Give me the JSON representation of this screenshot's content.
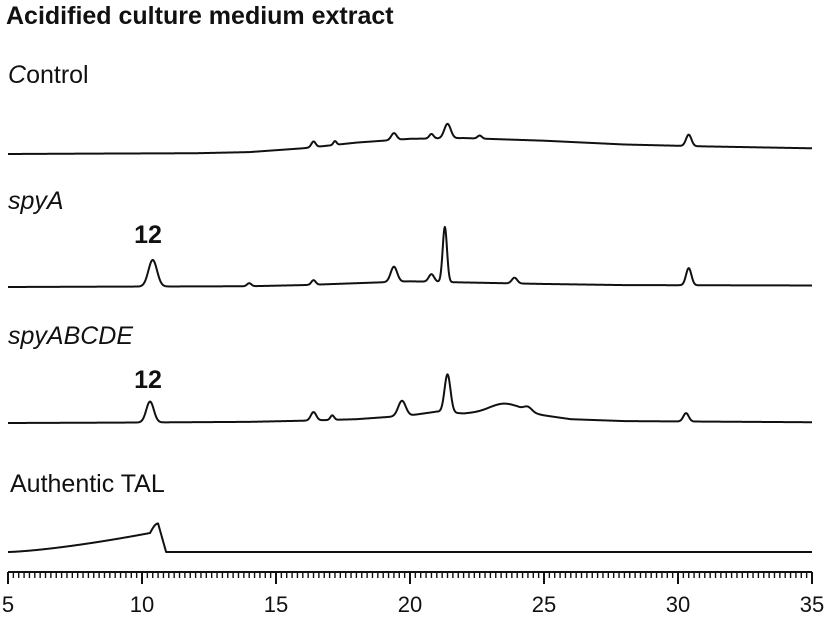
{
  "chart_data": {
    "type": "line",
    "title": "Acidified culture medium extract",
    "xlabel": "",
    "ylabel": "",
    "xlim": [
      5,
      35
    ],
    "x_ticks": [
      5,
      10,
      15,
      20,
      25,
      30,
      35
    ],
    "x_tick_labels": [
      "5",
      "10",
      "15",
      "20",
      "25",
      "30",
      "35"
    ],
    "x_minor_step": 0.2,
    "grid": false,
    "legend": "none",
    "series": [
      {
        "name": "Control",
        "italic_part": "C",
        "baseline": [
          [
            5,
            0
          ],
          [
            8,
            0.01
          ],
          [
            12,
            0.02
          ],
          [
            14,
            0.05
          ],
          [
            16,
            0.15
          ],
          [
            18,
            0.3
          ],
          [
            20,
            0.4
          ],
          [
            22,
            0.42
          ],
          [
            25,
            0.35
          ],
          [
            28,
            0.25
          ],
          [
            31,
            0.2
          ],
          [
            35,
            0.15
          ]
        ],
        "peaks": [
          [
            16.4,
            0.15,
            0.08
          ],
          [
            17.2,
            0.1,
            0.06
          ],
          [
            19.4,
            0.18,
            0.1
          ],
          [
            20.8,
            0.12,
            0.08
          ],
          [
            21.4,
            0.38,
            0.12
          ],
          [
            22.6,
            0.08,
            0.08
          ],
          [
            30.4,
            0.3,
            0.1
          ]
        ]
      },
      {
        "name": "spyA",
        "italic_part": "spyA",
        "annotation": {
          "text": "12",
          "x": 10.4
        },
        "baseline": [
          [
            5,
            0
          ],
          [
            9,
            0.01
          ],
          [
            14,
            0.02
          ],
          [
            16,
            0.05
          ],
          [
            18,
            0.1
          ],
          [
            20,
            0.15
          ],
          [
            22,
            0.12
          ],
          [
            25,
            0.08
          ],
          [
            28,
            0.05
          ],
          [
            35,
            0.04
          ]
        ],
        "peaks": [
          [
            10.4,
            0.7,
            0.16
          ],
          [
            14,
            0.08,
            0.08
          ],
          [
            16.4,
            0.12,
            0.08
          ],
          [
            19.4,
            0.4,
            0.12
          ],
          [
            20.8,
            0.2,
            0.1
          ],
          [
            21.3,
            1.45,
            0.08
          ],
          [
            23.9,
            0.15,
            0.1
          ],
          [
            30.4,
            0.45,
            0.1
          ]
        ]
      },
      {
        "name": "spyABCDE",
        "italic_part": "spyABCDE",
        "annotation": {
          "text": "12",
          "x": 10.3
        },
        "baseline": [
          [
            5,
            0
          ],
          [
            9,
            0.01
          ],
          [
            14,
            0.03
          ],
          [
            16,
            0.06
          ],
          [
            18,
            0.1
          ],
          [
            20,
            0.2
          ],
          [
            21,
            0.3
          ],
          [
            22,
            0.25
          ],
          [
            23,
            0.3
          ],
          [
            24,
            0.32
          ],
          [
            25,
            0.2
          ],
          [
            26,
            0.1
          ],
          [
            28,
            0.05
          ],
          [
            35,
            0.02
          ]
        ],
        "peaks": [
          [
            10.3,
            0.55,
            0.14
          ],
          [
            16.4,
            0.22,
            0.1
          ],
          [
            17.1,
            0.12,
            0.07
          ],
          [
            19.7,
            0.4,
            0.14
          ],
          [
            21.4,
            1.0,
            0.11
          ],
          [
            23.5,
            0.2,
            0.5
          ],
          [
            24.4,
            0.12,
            0.15
          ],
          [
            30.3,
            0.22,
            0.1
          ]
        ]
      },
      {
        "name": "Authentic TAL",
        "italic_part": "",
        "baseline": [
          [
            5,
            0
          ],
          [
            35,
            0
          ]
        ],
        "peaks": [],
        "special": "TAL"
      }
    ]
  }
}
